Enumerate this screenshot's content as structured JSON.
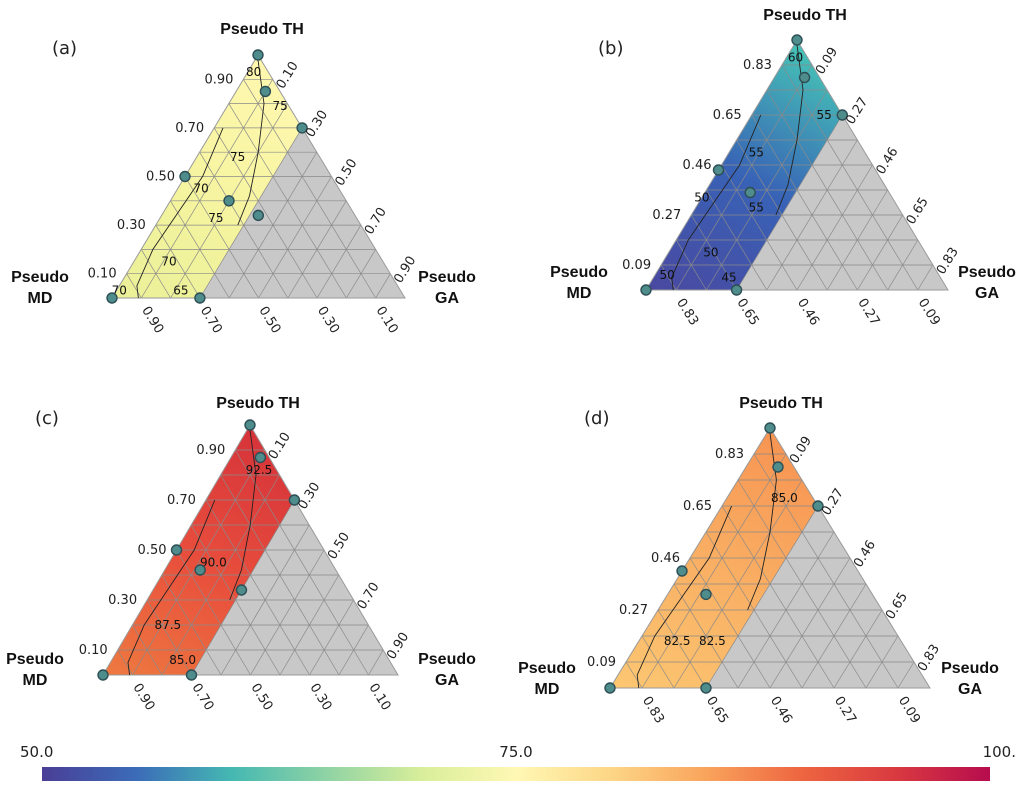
{
  "chart_data": [
    {
      "type": "ternary",
      "panel_label": "(a)",
      "vertex_labels": {
        "top": "Pseudo TH",
        "left": [
          "Pseudo",
          "MD"
        ],
        "right": [
          "Pseudo",
          "GA"
        ]
      },
      "left_ticks": [
        "0.10",
        "0.30",
        "0.50",
        "0.70",
        "0.90"
      ],
      "right_ticks": [
        "0.10",
        "0.30",
        "0.50",
        "0.70",
        "0.90"
      ],
      "bottom_ticks": [
        "0.90",
        "0.70",
        "0.50",
        "0.30",
        "0.10"
      ],
      "region_max_ga": 0.3,
      "colors": [
        "#eaf098",
        "#f6f4a0",
        "#fff8b0"
      ],
      "contour_labels": [
        {
          "text": "80",
          "t": 0.93,
          "g": 0.02
        },
        {
          "text": "75",
          "t": 0.79,
          "g": 0.18
        },
        {
          "text": "75",
          "t": 0.58,
          "g": 0.14
        },
        {
          "text": "70",
          "t": 0.45,
          "g": 0.08
        },
        {
          "text": "75",
          "t": 0.33,
          "g": 0.19
        },
        {
          "text": "70",
          "t": 0.15,
          "g": 0.12
        },
        {
          "text": "70",
          "t": 0.03,
          "g": 0.01
        },
        {
          "text": "65",
          "t": 0.03,
          "g": 0.22
        }
      ],
      "points": [
        {
          "t": 1.0,
          "g": 0.0
        },
        {
          "t": 0.85,
          "g": 0.1
        },
        {
          "t": 0.7,
          "g": 0.3
        },
        {
          "t": 0.5,
          "g": 0.0
        },
        {
          "t": 0.4,
          "g": 0.2
        },
        {
          "t": 0.34,
          "g": 0.33
        },
        {
          "t": 0.0,
          "g": 0.0
        },
        {
          "t": 0.0,
          "g": 0.3
        }
      ]
    },
    {
      "type": "ternary",
      "panel_label": "(b)",
      "vertex_labels": {
        "top": "Pseudo TH",
        "left": [
          "Pseudo",
          "MD"
        ],
        "right": [
          "Pseudo",
          "GA"
        ]
      },
      "left_ticks": [
        "0.09",
        "0.27",
        "0.46",
        "0.65",
        "0.83"
      ],
      "right_ticks": [
        "0.09",
        "0.27",
        "0.46",
        "0.65",
        "0.83"
      ],
      "bottom_ticks": [
        "0.83",
        "0.65",
        "0.46",
        "0.27",
        "0.09"
      ],
      "region_max_ga": 0.3,
      "colors": [
        "#4a48a0",
        "#3862b6",
        "#46c4b6"
      ],
      "contour_labels": [
        {
          "text": "60",
          "t": 0.93,
          "g": 0.03
        },
        {
          "text": "55",
          "t": 0.7,
          "g": 0.24
        },
        {
          "text": "55",
          "t": 0.55,
          "g": 0.09
        },
        {
          "text": "50",
          "t": 0.37,
          "g": 0.0
        },
        {
          "text": "55",
          "t": 0.33,
          "g": 0.2
        },
        {
          "text": "50",
          "t": 0.15,
          "g": 0.14
        },
        {
          "text": "50",
          "t": 0.06,
          "g": 0.04
        },
        {
          "text": "45",
          "t": 0.05,
          "g": 0.25
        }
      ],
      "points": [
        {
          "t": 1.0,
          "g": 0.0
        },
        {
          "t": 0.85,
          "g": 0.1
        },
        {
          "t": 0.7,
          "g": 0.3
        },
        {
          "t": 0.48,
          "g": 0.0
        },
        {
          "t": 0.39,
          "g": 0.15
        },
        {
          "t": 0.0,
          "g": 0.0
        },
        {
          "t": 0.0,
          "g": 0.3
        }
      ]
    },
    {
      "type": "ternary",
      "panel_label": "(c)",
      "vertex_labels": {
        "top": "Pseudo TH",
        "left": [
          "Pseudo",
          "MD"
        ],
        "right": [
          "Pseudo",
          "GA"
        ]
      },
      "left_ticks": [
        "0.10",
        "0.30",
        "0.50",
        "0.70",
        "0.90"
      ],
      "right_ticks": [
        "0.10",
        "0.30",
        "0.50",
        "0.70",
        "0.90"
      ],
      "bottom_ticks": [
        "0.90",
        "0.70",
        "0.50",
        "0.30",
        "0.10"
      ],
      "region_max_ga": 0.3,
      "colors": [
        "#ee7a40",
        "#e84e3c",
        "#d6333a"
      ],
      "contour_labels": [
        {
          "text": "92.5",
          "t": 0.82,
          "g": 0.12
        },
        {
          "text": "90.0",
          "t": 0.45,
          "g": 0.15
        },
        {
          "text": "87.5",
          "t": 0.2,
          "g": 0.12
        },
        {
          "text": "85.0",
          "t": 0.06,
          "g": 0.24
        }
      ],
      "points": [
        {
          "t": 1.0,
          "g": 0.0
        },
        {
          "t": 0.87,
          "g": 0.1
        },
        {
          "t": 0.7,
          "g": 0.3
        },
        {
          "t": 0.5,
          "g": 0.0
        },
        {
          "t": 0.42,
          "g": 0.12
        },
        {
          "t": 0.34,
          "g": 0.3
        },
        {
          "t": 0.0,
          "g": 0.0
        },
        {
          "t": 0.0,
          "g": 0.3
        }
      ]
    },
    {
      "type": "ternary",
      "panel_label": "(d)",
      "vertex_labels": {
        "top": "Pseudo TH",
        "left": [
          "Pseudo",
          "MD"
        ],
        "right": [
          "Pseudo",
          "GA"
        ]
      },
      "left_ticks": [
        "0.09",
        "0.27",
        "0.46",
        "0.65",
        "0.83"
      ],
      "right_ticks": [
        "0.09",
        "0.27",
        "0.46",
        "0.65",
        "0.83"
      ],
      "bottom_ticks": [
        "0.83",
        "0.65",
        "0.46",
        "0.27",
        "0.09"
      ],
      "region_max_ga": 0.3,
      "colors": [
        "#fcc772",
        "#f9b064",
        "#f79452"
      ],
      "contour_labels": [
        {
          "text": "85.0",
          "t": 0.73,
          "g": 0.18
        },
        {
          "text": "82.5",
          "t": 0.18,
          "g": 0.12
        },
        {
          "text": "82.5",
          "t": 0.18,
          "g": 0.23
        }
      ],
      "points": [
        {
          "t": 1.0,
          "g": 0.0
        },
        {
          "t": 0.85,
          "g": 0.1
        },
        {
          "t": 0.7,
          "g": 0.3
        },
        {
          "t": 0.45,
          "g": 0.0
        },
        {
          "t": 0.36,
          "g": 0.12
        },
        {
          "t": 0.0,
          "g": 0.0
        },
        {
          "t": 0.0,
          "g": 0.3
        }
      ]
    }
  ],
  "colorbar": {
    "min_label": "50.0",
    "mid_label": "75.0",
    "max_label": "100.",
    "stops": [
      "#4a3e96",
      "#3b6cb8",
      "#45b8b2",
      "#8fd3a4",
      "#d8ee9a",
      "#fff8b4",
      "#fdd686",
      "#f9a45c",
      "#ee6640",
      "#d93a40",
      "#b60c4e"
    ]
  }
}
